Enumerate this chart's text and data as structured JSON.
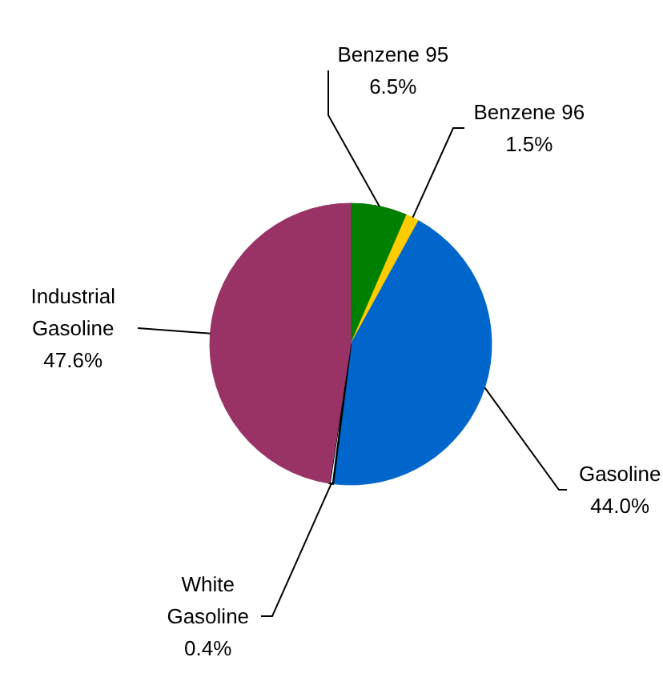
{
  "chart_data": {
    "type": "pie",
    "categories": [
      "Benzene 95",
      "Benzene 96",
      "Gasoline",
      "White Gasoline",
      "Industrial Gasoline"
    ],
    "values": [
      6.5,
      1.5,
      44.0,
      0.4,
      47.6
    ],
    "colors": [
      "#008000",
      "#ffcc00",
      "#0066cc",
      "#ccffff",
      "#993366"
    ],
    "value_labels": [
      "6.5%",
      "1.5%",
      "44.0%",
      "0.4%",
      "47.6%"
    ]
  }
}
